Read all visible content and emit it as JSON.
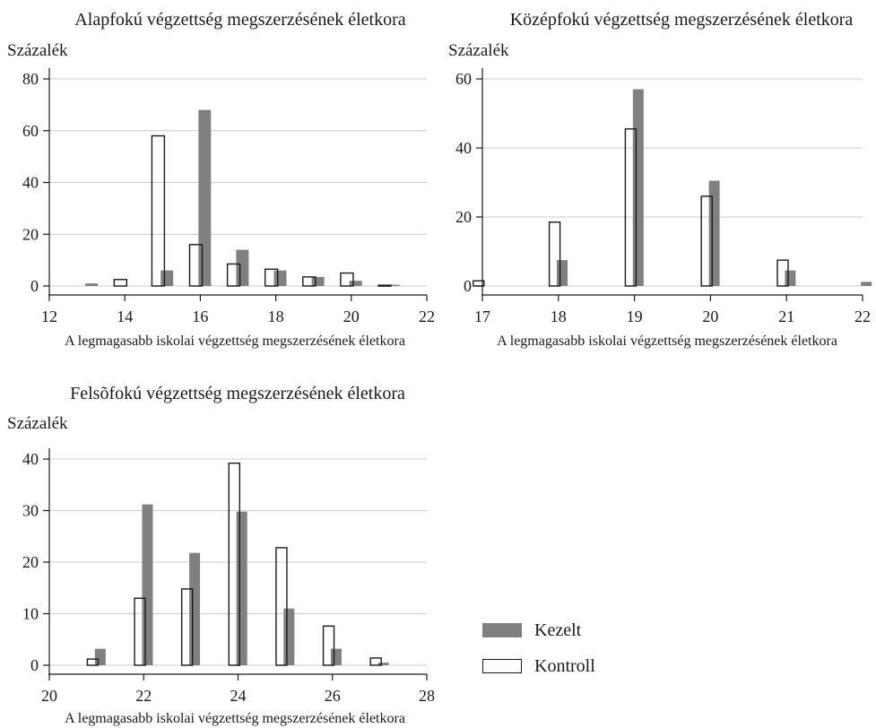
{
  "colors": {
    "treated": "#808080",
    "control_fill": "#ffffff",
    "control_stroke": "#1a1a1a",
    "axis": "#1a1a1a",
    "grid": "#cccccc"
  },
  "legend": {
    "treated_label": "Kezelt",
    "control_label": "Kontroll"
  },
  "chart_data": [
    {
      "type": "bar",
      "title": "Alapfokú végzettség megszerzésének életkora",
      "ylabel": "Százalék",
      "xlabel": "A legmagasabb iskolai végzettség megszerzésének életkora",
      "xlim": [
        12,
        22
      ],
      "ylim": [
        0,
        80
      ],
      "xticks": [
        12,
        14,
        16,
        18,
        20,
        22
      ],
      "yticks": [
        0,
        20,
        40,
        60,
        80
      ],
      "grid": true,
      "series": [
        {
          "name": "Kezelt",
          "x": [
            13,
            15,
            16,
            17,
            18,
            19,
            20,
            21
          ],
          "values": [
            1,
            6,
            68,
            14,
            6,
            3.5,
            2,
            0.5
          ]
        },
        {
          "name": "Kontroll",
          "x": [
            14,
            15,
            16,
            17,
            18,
            19,
            20,
            21
          ],
          "values": [
            2.5,
            58,
            16,
            8.5,
            6.5,
            3.5,
            5,
            0.3
          ]
        }
      ]
    },
    {
      "type": "bar",
      "title": "Középfokú végzettség megszerzésének életkora",
      "ylabel": "Százalék",
      "xlabel": "A legmagasabb iskolai végzettség megszerzésének életkora",
      "xlim": [
        17,
        22
      ],
      "ylim": [
        0,
        60
      ],
      "xticks": [
        17,
        18,
        19,
        20,
        21,
        22
      ],
      "yticks": [
        0,
        20,
        40,
        60
      ],
      "grid": true,
      "series": [
        {
          "name": "Kezelt",
          "x": [
            18,
            19,
            20,
            21,
            22
          ],
          "values": [
            7.5,
            57,
            30.5,
            4.5,
            1.2
          ]
        },
        {
          "name": "Kontroll",
          "x": [
            17,
            18,
            19,
            20,
            21
          ],
          "values": [
            1.5,
            18.5,
            45.5,
            26,
            7.5
          ]
        }
      ]
    },
    {
      "type": "bar",
      "title": "Felsõfokú végzettség megszerzésének életkora",
      "ylabel": "Százalék",
      "xlabel": "A legmagasabb iskolai végzettség megszerzésének életkora",
      "xlim": [
        20,
        28
      ],
      "ylim": [
        0,
        40
      ],
      "xticks": [
        20,
        22,
        24,
        26,
        28
      ],
      "yticks": [
        0,
        10,
        20,
        30,
        40
      ],
      "grid": true,
      "series": [
        {
          "name": "Kezelt",
          "x": [
            21,
            22,
            23,
            24,
            25,
            26,
            27
          ],
          "values": [
            3.2,
            31.2,
            21.8,
            29.8,
            11,
            3.2,
            0.5
          ]
        },
        {
          "name": "Kontroll",
          "x": [
            21,
            22,
            23,
            24,
            25,
            26,
            27
          ],
          "values": [
            1.2,
            13,
            14.8,
            39.2,
            22.8,
            7.6,
            1.4
          ]
        }
      ]
    }
  ]
}
